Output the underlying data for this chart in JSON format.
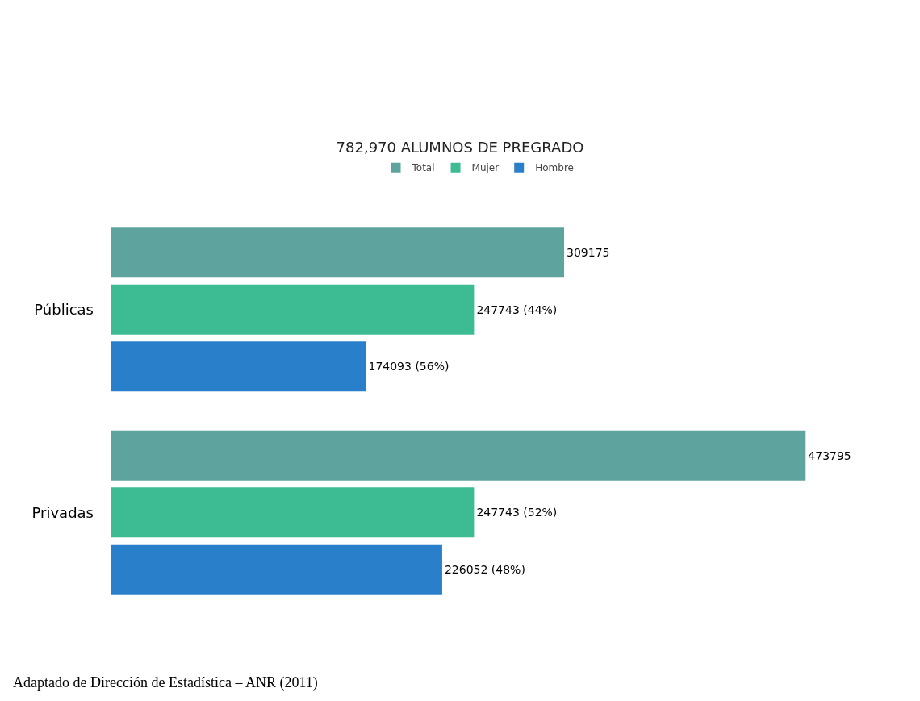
{
  "chart_data": {
    "type": "bar",
    "orientation": "horizontal",
    "title": "782,970 ALUMNOS DE PREGRADO",
    "categories": [
      "Públicas",
      "Privadas"
    ],
    "series": [
      {
        "name": "Total",
        "color": "#5fa39e",
        "values": [
          309175,
          473795
        ],
        "value_labels": [
          "309175",
          "473795"
        ]
      },
      {
        "name": "Mujer",
        "color": "#3dbb93",
        "values": [
          247743,
          247743
        ],
        "value_labels": [
          "247743 (44%)",
          "247743 (52%)"
        ]
      },
      {
        "name": "Hombre",
        "color": "#2a7fcb",
        "values": [
          174093,
          226052
        ],
        "value_labels": [
          "174093 (56%)",
          "226052 (48%)"
        ]
      }
    ],
    "legend": "top",
    "tick_labels": "y",
    "annotations": [
      "Adaptado de Dirección de Estadística – ANR (2011)"
    ]
  }
}
